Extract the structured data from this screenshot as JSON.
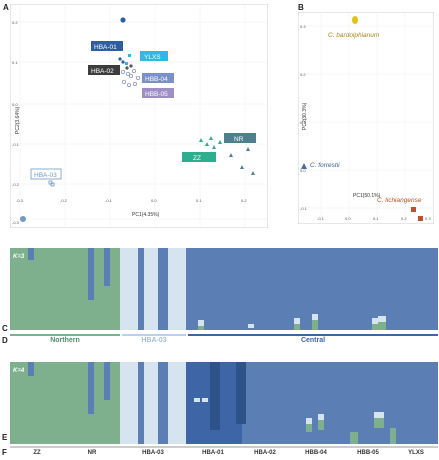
{
  "panels": {
    "a": "A",
    "b": "B",
    "c": "C",
    "d": "D",
    "e": "E",
    "f": "F"
  },
  "pca_a": {
    "x_label": "PC1(4.35%)",
    "y_label": "PC2(3.64%)",
    "x_ticks": [
      "-0.3",
      "-0.2",
      "-0.1",
      "0.0",
      "0.1",
      "0.2"
    ],
    "y_ticks": [
      "0.2",
      "0.1",
      "0.0",
      "-0.1",
      "-0.2",
      "-0.3"
    ],
    "groups": [
      {
        "label": "HBA-01",
        "color": "#2f5e9e"
      },
      {
        "label": "YLXS",
        "color": "#33b5e5"
      },
      {
        "label": "HBA-02",
        "color": "#3c3c3c"
      },
      {
        "label": "HBB-04",
        "color": "#7b8fc8"
      },
      {
        "label": "HBB-05",
        "color": "#9d8fc5"
      },
      {
        "label": "NR",
        "color": "#4f7f8c"
      },
      {
        "label": "ZZ",
        "color": "#2fae8f"
      },
      {
        "label": "HBA-03",
        "color": "#6f9bc4"
      }
    ]
  },
  "pca_b": {
    "x_label": "PC1(50.1%)",
    "y_label": "PC2(30.3%)",
    "x_ticks": [
      "-0.1",
      "0.0",
      "0.1",
      "0.2",
      "0.3"
    ],
    "y_ticks": [
      "0.3",
      "0.2",
      "0.1",
      "0.0",
      "-0.1"
    ],
    "species": [
      {
        "name": "C. bardolphianum",
        "color": "#b8a01f"
      },
      {
        "name": "C. forrestii",
        "color": "#4a6fa5"
      },
      {
        "name": "C. lichiangense",
        "color": "#c0502a"
      }
    ]
  },
  "structure": {
    "k3_label": "K=3",
    "k4_label": "K=4",
    "regions": [
      "Northern",
      "HBA-03",
      "Central"
    ],
    "populations": [
      "ZZ",
      "NR",
      "HBA-03",
      "HBA-01",
      "HBA-02",
      "HBB-04",
      "HBB-05",
      "YLXS"
    ]
  },
  "colors": {
    "green": "#7fb08e",
    "lightblue": "#d6e4f0",
    "blue": "#5b7fb4",
    "darkblue": "#3e66a6"
  }
}
